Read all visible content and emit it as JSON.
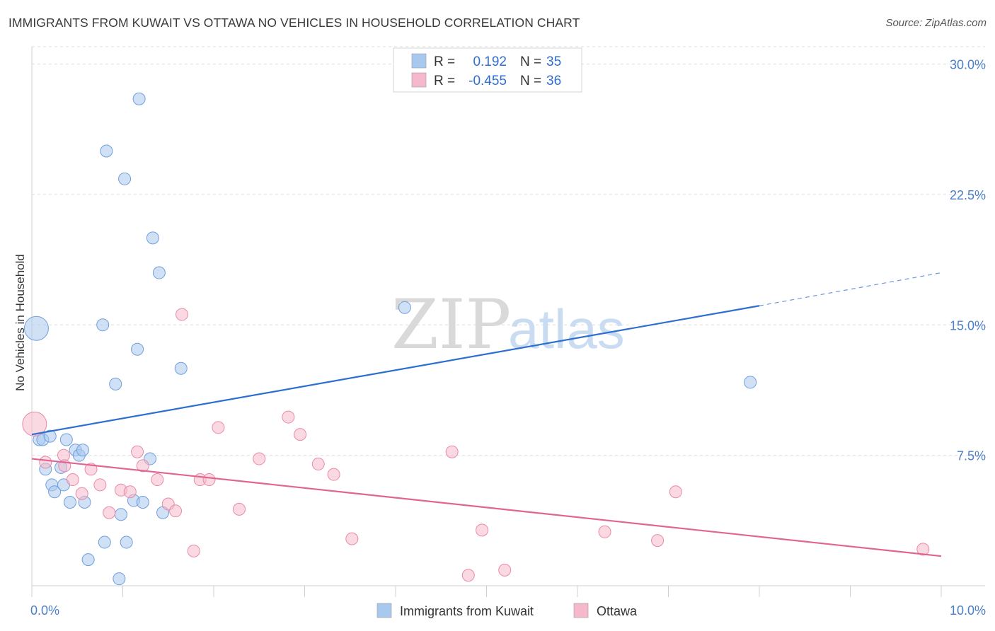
{
  "header": {
    "title": "IMMIGRANTS FROM KUWAIT VS OTTAWA NO VEHICLES IN HOUSEHOLD CORRELATION CHART",
    "source": "Source: ZipAtlas.com"
  },
  "watermark": {
    "zip": "ZIP",
    "atlas": "atlas"
  },
  "legend": {
    "rows": [
      {
        "r_label": "R =",
        "r_value": "0.192",
        "n_label": "N =",
        "n_value": "35",
        "color": "#a9c8ef"
      },
      {
        "r_label": "R =",
        "r_value": "-0.455",
        "n_label": "N =",
        "n_value": "36",
        "color": "#f6b9cb"
      }
    ]
  },
  "chart_data": {
    "type": "scatter",
    "title": "IMMIGRANTS FROM KUWAIT VS OTTAWA NO VEHICLES IN HOUSEHOLD CORRELATION CHART",
    "xlabel": "",
    "ylabel": "No Vehicles in Household",
    "xlim": [
      0,
      10
    ],
    "ylim": [
      0,
      31
    ],
    "x_tick_labels": [
      "0.0%",
      "10.0%"
    ],
    "y_ticks": [
      7.5,
      15,
      22.5,
      30
    ],
    "y_tick_labels": [
      "7.5%",
      "15.0%",
      "22.5%",
      "30.0%"
    ],
    "grid": true,
    "legend_position": "top-center",
    "series": [
      {
        "name": "Immigrants from Kuwait",
        "color": "#a9c8ef",
        "stroke": "#6f9fdc",
        "line_color": "#2d6fd0",
        "trend": {
          "x0": 0,
          "y0": 8.7,
          "x1": 8.0,
          "y1": 16.1,
          "x_dash_end": 10.0,
          "y_dash_end": 18.0
        },
        "points": [
          {
            "x": 0.05,
            "y": 14.8,
            "big": true
          },
          {
            "x": 0.08,
            "y": 8.4
          },
          {
            "x": 0.12,
            "y": 8.4
          },
          {
            "x": 0.2,
            "y": 8.6
          },
          {
            "x": 0.15,
            "y": 6.7
          },
          {
            "x": 0.22,
            "y": 5.8
          },
          {
            "x": 0.25,
            "y": 5.4
          },
          {
            "x": 0.32,
            "y": 6.8
          },
          {
            "x": 0.35,
            "y": 5.8
          },
          {
            "x": 0.38,
            "y": 8.4
          },
          {
            "x": 0.42,
            "y": 4.8
          },
          {
            "x": 0.48,
            "y": 7.8
          },
          {
            "x": 0.52,
            "y": 7.5
          },
          {
            "x": 0.56,
            "y": 7.8
          },
          {
            "x": 0.58,
            "y": 4.8
          },
          {
            "x": 0.62,
            "y": 1.5
          },
          {
            "x": 0.78,
            "y": 15.0
          },
          {
            "x": 0.8,
            "y": 2.5
          },
          {
            "x": 0.82,
            "y": 25.0
          },
          {
            "x": 0.92,
            "y": 11.6
          },
          {
            "x": 0.96,
            "y": 0.4
          },
          {
            "x": 0.98,
            "y": 4.1
          },
          {
            "x": 1.02,
            "y": 23.4
          },
          {
            "x": 1.04,
            "y": 2.5
          },
          {
            "x": 1.12,
            "y": 4.9
          },
          {
            "x": 1.16,
            "y": 13.6
          },
          {
            "x": 1.18,
            "y": 28.0
          },
          {
            "x": 1.22,
            "y": 4.8
          },
          {
            "x": 1.3,
            "y": 7.3
          },
          {
            "x": 1.33,
            "y": 20.0
          },
          {
            "x": 1.4,
            "y": 18.0
          },
          {
            "x": 1.44,
            "y": 4.2
          },
          {
            "x": 1.64,
            "y": 12.5
          },
          {
            "x": 4.1,
            "y": 16.0
          },
          {
            "x": 7.9,
            "y": 11.7
          }
        ]
      },
      {
        "name": "Ottawa",
        "color": "#f6b9cb",
        "stroke": "#e98aa6",
        "line_color": "#e06593",
        "trend": {
          "x0": 0,
          "y0": 7.3,
          "x1": 10.0,
          "y1": 1.7
        },
        "points": [
          {
            "x": 0.03,
            "y": 9.3,
            "big": true
          },
          {
            "x": 0.15,
            "y": 7.1
          },
          {
            "x": 0.35,
            "y": 7.5
          },
          {
            "x": 0.36,
            "y": 6.9
          },
          {
            "x": 0.45,
            "y": 6.1
          },
          {
            "x": 0.55,
            "y": 5.3
          },
          {
            "x": 0.65,
            "y": 6.7
          },
          {
            "x": 0.75,
            "y": 5.8
          },
          {
            "x": 0.85,
            "y": 4.2
          },
          {
            "x": 0.98,
            "y": 5.5
          },
          {
            "x": 1.08,
            "y": 5.4
          },
          {
            "x": 1.16,
            "y": 7.7
          },
          {
            "x": 1.22,
            "y": 6.9
          },
          {
            "x": 1.38,
            "y": 6.1
          },
          {
            "x": 1.5,
            "y": 4.7
          },
          {
            "x": 1.58,
            "y": 4.3
          },
          {
            "x": 1.65,
            "y": 15.6
          },
          {
            "x": 1.78,
            "y": 2.0
          },
          {
            "x": 1.85,
            "y": 6.1
          },
          {
            "x": 1.95,
            "y": 6.1
          },
          {
            "x": 2.05,
            "y": 9.1
          },
          {
            "x": 2.28,
            "y": 4.4
          },
          {
            "x": 2.5,
            "y": 7.3
          },
          {
            "x": 2.82,
            "y": 9.7
          },
          {
            "x": 2.95,
            "y": 8.7
          },
          {
            "x": 3.15,
            "y": 7.0
          },
          {
            "x": 3.32,
            "y": 6.4
          },
          {
            "x": 3.52,
            "y": 2.7
          },
          {
            "x": 4.62,
            "y": 7.7
          },
          {
            "x": 4.8,
            "y": 0.6
          },
          {
            "x": 4.95,
            "y": 3.2
          },
          {
            "x": 5.2,
            "y": 0.9
          },
          {
            "x": 6.3,
            "y": 3.1
          },
          {
            "x": 6.88,
            "y": 2.6
          },
          {
            "x": 7.08,
            "y": 5.4
          },
          {
            "x": 9.8,
            "y": 2.1
          }
        ]
      }
    ]
  }
}
